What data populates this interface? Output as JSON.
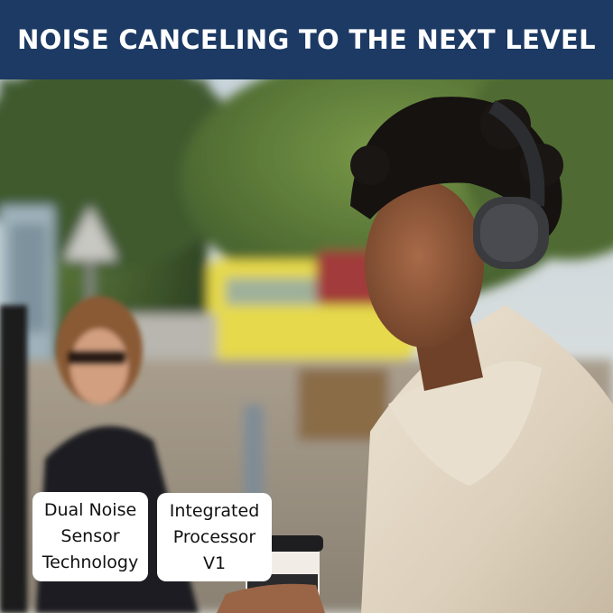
{
  "banner": {
    "title": "NOISE CANCELING TO THE NEXT LEVEL",
    "background": "#1c3a63"
  },
  "features": [
    {
      "label_lines": [
        "Dual Noise",
        "Sensor",
        "Technology"
      ]
    },
    {
      "label_lines": [
        "Integrated",
        "Processor V1"
      ]
    }
  ]
}
